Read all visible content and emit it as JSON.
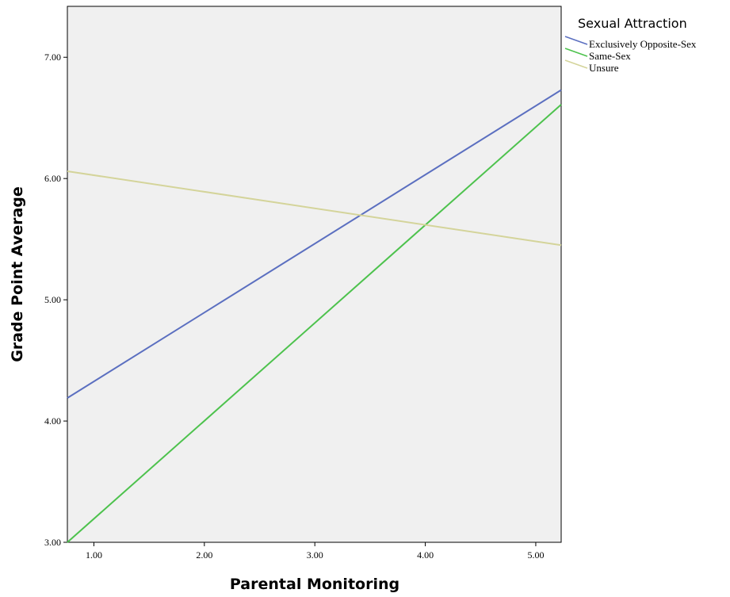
{
  "chart_data": {
    "type": "line",
    "title": "",
    "xlabel": "Parental Monitoring",
    "ylabel": "Grade Point Average",
    "xlim": [
      0.76,
      5.23
    ],
    "ylim": [
      3.0,
      7.42
    ],
    "xticks": [
      1.0,
      2.0,
      3.0,
      4.0,
      5.0
    ],
    "xtick_labels": [
      "1.00",
      "2.00",
      "3.00",
      "4.00",
      "5.00"
    ],
    "yticks": [
      3.0,
      4.0,
      5.0,
      6.0,
      7.0
    ],
    "ytick_labels": [
      "3.00",
      "4.00",
      "5.00",
      "6.00",
      "7.00"
    ],
    "grid": false,
    "background": "#f0f0f0",
    "legend": {
      "title": "Sexual Attraction",
      "placement": "outside-top-right"
    },
    "series": [
      {
        "name": "Exclusively Opposite-Sex",
        "color": "#5b6fc0",
        "x": [
          0.76,
          5.23
        ],
        "y": [
          4.19,
          6.73
        ]
      },
      {
        "name": "Same-Sex",
        "color": "#4dc24d",
        "x": [
          0.76,
          5.23
        ],
        "y": [
          3.0,
          6.61
        ]
      },
      {
        "name": "Unsure",
        "color": "#d4d49a",
        "x": [
          0.76,
          5.23
        ],
        "y": [
          6.06,
          5.45
        ]
      }
    ]
  }
}
